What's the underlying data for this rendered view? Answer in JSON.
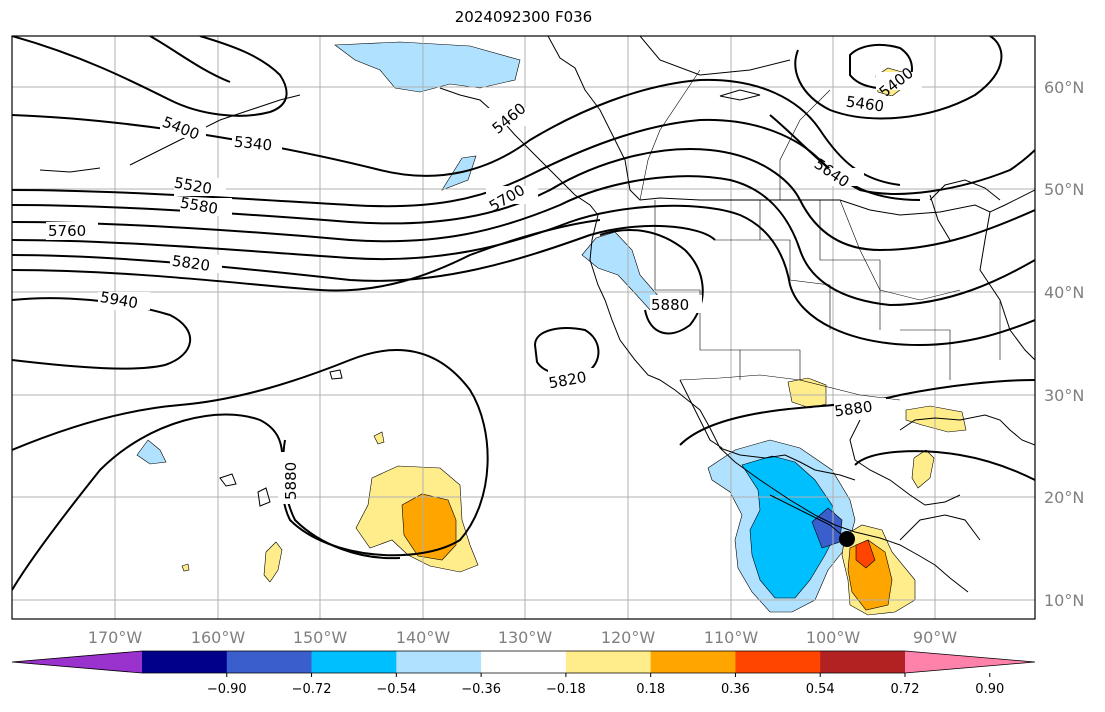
{
  "title": "2024092300 F036",
  "map": {
    "lon_labels": [
      "170°W",
      "160°W",
      "150°W",
      "140°W",
      "130°W",
      "120°W",
      "110°W",
      "100°W",
      "90°W"
    ],
    "lat_labels": [
      "60°N",
      "50°N",
      "40°N",
      "30°N",
      "20°N",
      "10°N"
    ],
    "contour_labels": [
      "5400",
      "5340",
      "5460",
      "5400",
      "5460",
      "5520",
      "5580",
      "5700",
      "5640",
      "5760",
      "5820",
      "5940",
      "5880",
      "5820",
      "5880",
      "5880"
    ],
    "storm_marker": "black-dot"
  },
  "colorbar": {
    "ticks": [
      "−0.90",
      "−0.72",
      "−0.54",
      "−0.36",
      "−0.18",
      "0.18",
      "0.36",
      "0.54",
      "0.72",
      "0.90"
    ],
    "colors": [
      "#9a32cd",
      "#00008b",
      "#3a5fcd",
      "#00bfff",
      "#b0e2ff",
      "#ffffff",
      "#ffec8b",
      "#ffa500",
      "#ff4500",
      "#b22222",
      "#ff82ab"
    ]
  }
}
